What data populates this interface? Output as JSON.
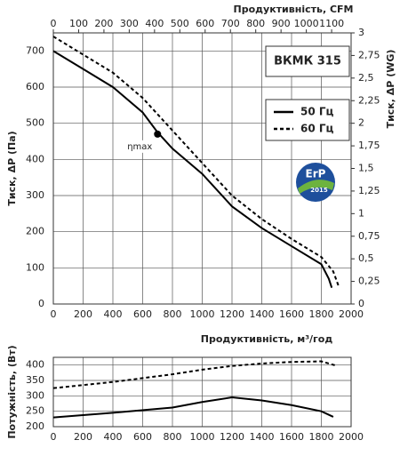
{
  "chart_data": [
    {
      "type": "line",
      "title": "ВКМК 315",
      "xlabel": "Продуктивність, м³/год",
      "ylabel": "Тиск, ΔP (Па)",
      "y2label": "Тиск, ΔP (WG)",
      "x2label": "Продуктивність, CFM",
      "xlim": [
        0,
        2000
      ],
      "xticks": [
        0,
        200,
        400,
        600,
        800,
        1000,
        1200,
        1400,
        1600,
        1800,
        2000
      ],
      "ylim": [
        0,
        750
      ],
      "yticks": [
        0,
        100,
        200,
        300,
        400,
        500,
        600,
        700
      ],
      "y2lim": [
        0,
        3
      ],
      "y2ticks": [
        0,
        {
          "value": 0.25,
          "label": "0,25"
        },
        {
          "value": 0.5,
          "label": "0,5"
        },
        {
          "value": 0.75,
          "label": "0,75"
        },
        1,
        {
          "value": 1.25,
          "label": "1,25"
        },
        {
          "value": 1.5,
          "label": "1,5"
        },
        {
          "value": 1.75,
          "label": "1,75"
        },
        2,
        {
          "value": 2.25,
          "label": "2,25"
        },
        {
          "value": 2.5,
          "label": "2,5"
        },
        {
          "value": 2.75,
          "label": "2,75"
        },
        3
      ],
      "x2lim": [
        0,
        1177
      ],
      "x2ticks": [
        0,
        100,
        200,
        300,
        400,
        500,
        600,
        700,
        800,
        900,
        1000,
        1100
      ],
      "grid": true,
      "series": [
        {
          "name": "50 Гц",
          "color": "#000000",
          "dash": "solid",
          "x": [
            0,
            200,
            400,
            600,
            700,
            800,
            1000,
            1200,
            1400,
            1600,
            1800,
            1850,
            1870
          ],
          "values": [
            700,
            650,
            600,
            530,
            475,
            430,
            360,
            270,
            210,
            160,
            110,
            70,
            45
          ]
        },
        {
          "name": "60 Гц",
          "color": "#000000",
          "dash": "dashed",
          "x": [
            0,
            200,
            400,
            600,
            800,
            1000,
            1200,
            1400,
            1600,
            1800,
            1880,
            1920
          ],
          "values": [
            740,
            690,
            640,
            570,
            480,
            390,
            300,
            235,
            180,
            130,
            90,
            45
          ]
        }
      ],
      "annotations": [
        {
          "text": "ηmax",
          "x": 700,
          "y": 470
        }
      ],
      "logo": {
        "text": "ErP",
        "year": "2015"
      }
    },
    {
      "type": "line",
      "ylabel": "Потужність, (Вт)",
      "xlim": [
        0,
        2000
      ],
      "xticks": [
        0,
        200,
        400,
        600,
        800,
        1000,
        1200,
        1400,
        1600,
        1800,
        2000
      ],
      "ylim": [
        200,
        425
      ],
      "yticks": [
        200,
        250,
        300,
        350,
        400
      ],
      "grid": true,
      "series": [
        {
          "color": "#000000",
          "dash": "solid",
          "x": [
            0,
            400,
            800,
            1000,
            1200,
            1400,
            1600,
            1800,
            1880
          ],
          "values": [
            230,
            245,
            262,
            280,
            295,
            285,
            270,
            250,
            232
          ]
        },
        {
          "color": "#000000",
          "dash": "dashed",
          "x": [
            0,
            400,
            800,
            1000,
            1200,
            1400,
            1600,
            1800,
            1900
          ],
          "values": [
            325,
            345,
            370,
            385,
            397,
            405,
            410,
            412,
            398
          ]
        }
      ]
    }
  ]
}
